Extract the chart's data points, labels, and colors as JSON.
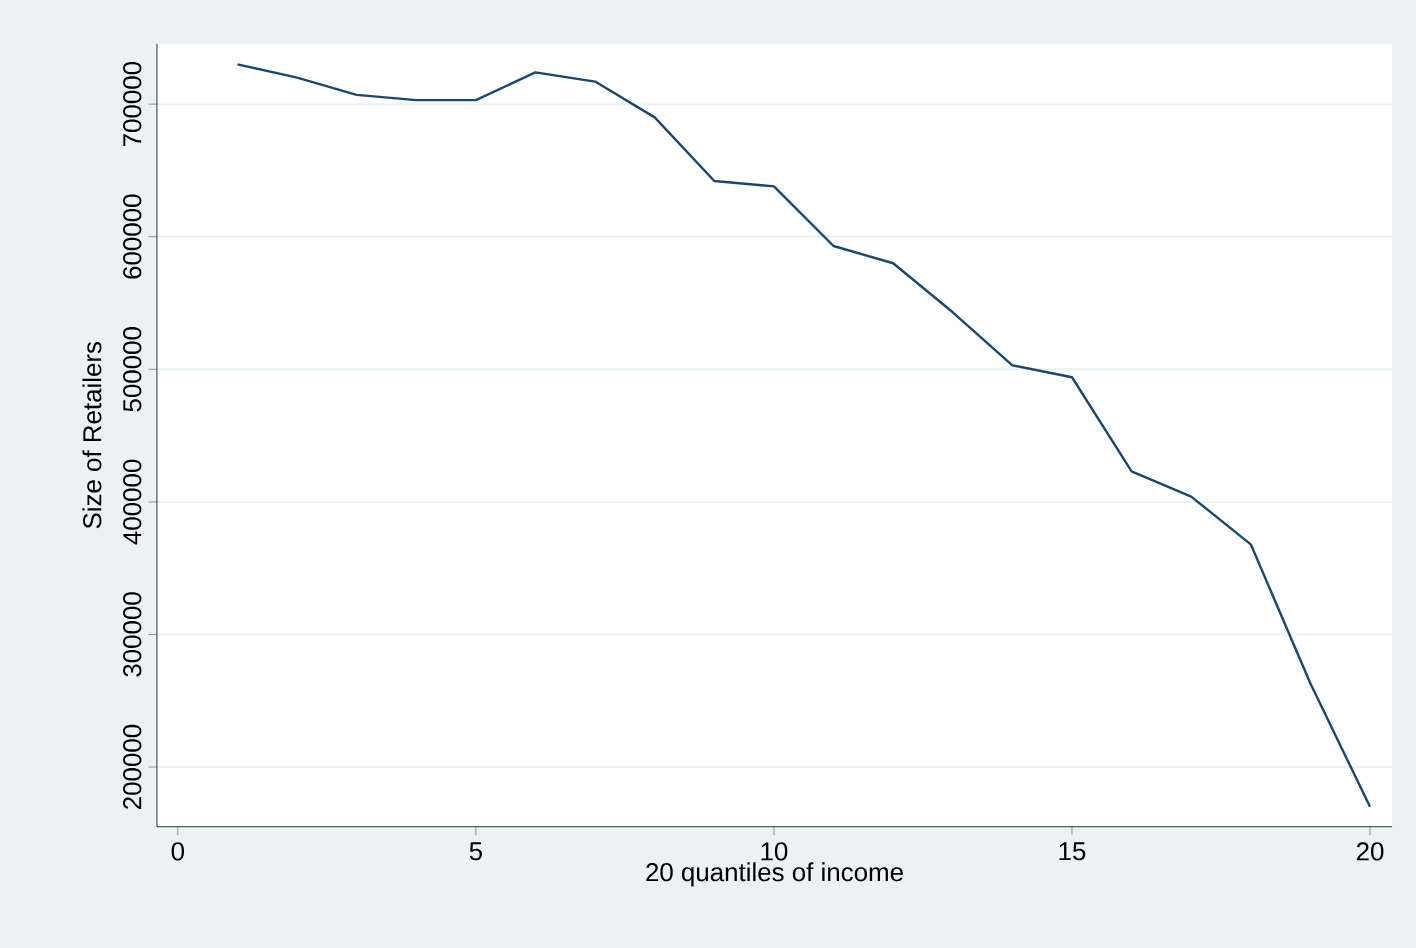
{
  "chart_data": {
    "type": "line",
    "xlabel": "20 quantiles of income",
    "ylabel": "Size of Retailers",
    "x": [
      1,
      2,
      3,
      4,
      5,
      6,
      7,
      8,
      9,
      10,
      11,
      12,
      13,
      14,
      15,
      16,
      17,
      18,
      19,
      20
    ],
    "series": [
      {
        "color": "#1a476f",
        "values": [
          730000,
          720000,
          707000,
          703000,
          703000,
          724000,
          717000,
          690000,
          642000,
          638000,
          593000,
          580000,
          543000,
          503000,
          494000,
          423000,
          404000,
          368000,
          263000,
          170000
        ]
      }
    ],
    "xlim": [
      -0.35,
      20.37
    ],
    "ylim": [
      155000,
      745500
    ],
    "xticks": [
      0,
      5,
      10,
      15,
      20
    ],
    "yticks": [
      200000,
      300000,
      400000,
      500000,
      600000,
      700000
    ],
    "grid": "y",
    "marker": "none",
    "line_style": "solid"
  }
}
